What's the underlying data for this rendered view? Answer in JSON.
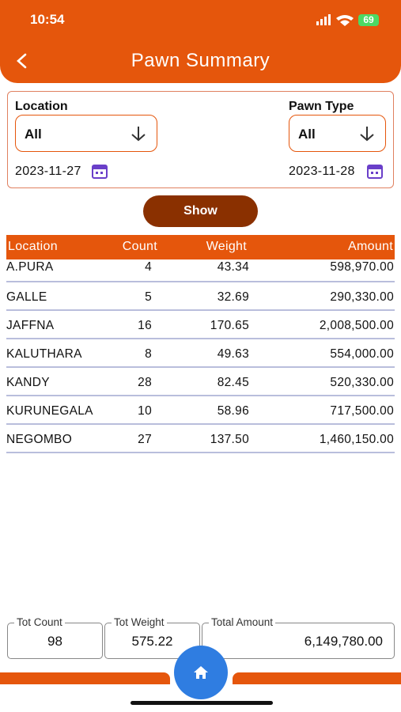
{
  "status_bar": {
    "time": "10:54",
    "battery": "69"
  },
  "header": {
    "title": "Pawn Summary"
  },
  "filters": {
    "location": {
      "label": "Location",
      "value": "All",
      "date": "2023-11-27"
    },
    "pawn_type": {
      "label": "Pawn Type",
      "value": "All",
      "date": "2023-11-28"
    }
  },
  "show_button": "Show",
  "table": {
    "columns": [
      "Location",
      "Count",
      "Weight",
      "Amount"
    ],
    "rows": [
      [
        "A.PURA",
        "4",
        "43.34",
        "598,970.00"
      ],
      [
        "GALLE",
        "5",
        "32.69",
        "290,330.00"
      ],
      [
        "JAFFNA",
        "16",
        "170.65",
        "2,008,500.00"
      ],
      [
        "KALUTHARA",
        "8",
        "49.63",
        "554,000.00"
      ],
      [
        "KANDY",
        "28",
        "82.45",
        "520,330.00"
      ],
      [
        "KURUNEGALA",
        "10",
        "58.96",
        "717,500.00"
      ],
      [
        "NEGOMBO",
        "27",
        "137.50",
        "1,460,150.00"
      ]
    ]
  },
  "totals": [
    {
      "label": "Tot Count",
      "value": "98"
    },
    {
      "label": "Tot Weight",
      "value": "575.22"
    },
    {
      "label": "Total Amount",
      "value": "6,149,780.00"
    }
  ]
}
